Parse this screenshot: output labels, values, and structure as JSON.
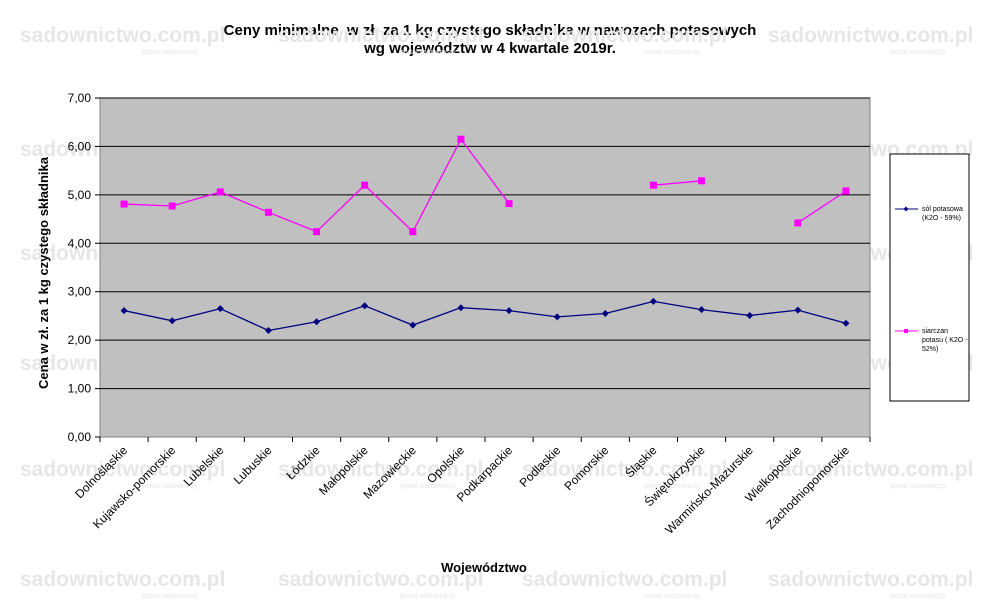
{
  "chart_data": {
    "type": "line",
    "title_lines": [
      "Ceny minimalne  w zł. za 1 kg czystego składnika w nawozach potasowych",
      "wg województw w 4 kwartale 2019r."
    ],
    "xlabel": "Województwo",
    "ylabel": "Cena w zł. za 1 kg czystego składnika",
    "ylim": [
      0,
      7
    ],
    "yticks": [
      "0,00",
      "1,00",
      "2,00",
      "3,00",
      "4,00",
      "5,00",
      "6,00",
      "7,00"
    ],
    "grid": true,
    "legend_position": "right",
    "categories": [
      "Dolnośląskie",
      "Kujawsko-pomorskie",
      "Lubelskie",
      "Lubuskie",
      "Łódzkie",
      "Małopolskie",
      "Mazowieckie",
      "Opolskie",
      "Podkarpackie",
      "Podlaskie",
      "Pomorskie",
      "Śląskie",
      "Świętokrzyskie",
      "Warmińsko-Mazurskie",
      "Wielkopolskie",
      "Zachodniopomorskie"
    ],
    "series": [
      {
        "name_lines": [
          "sól potasowa",
          "(K2O - 59%)"
        ],
        "color": "#000080",
        "marker": "diamond",
        "values": [
          2.61,
          2.4,
          2.65,
          2.2,
          2.38,
          2.71,
          2.31,
          2.67,
          2.61,
          2.48,
          2.55,
          2.8,
          2.63,
          2.51,
          2.62,
          2.35
        ]
      },
      {
        "name_lines": [
          "siarczan",
          "potasu ( K2O -",
          "52%)"
        ],
        "color": "#FF00FF",
        "marker": "square",
        "values": [
          4.81,
          4.77,
          5.06,
          4.64,
          4.24,
          5.2,
          4.24,
          6.15,
          4.82,
          null,
          null,
          5.2,
          5.29,
          null,
          4.42,
          5.08
        ]
      }
    ]
  },
  "watermark": {
    "text": "sadownictwo.com.pl",
    "subtext": "portal sadowniczy"
  },
  "colors": {
    "plot_background": "#C0C0C0",
    "grid": "#000000"
  }
}
